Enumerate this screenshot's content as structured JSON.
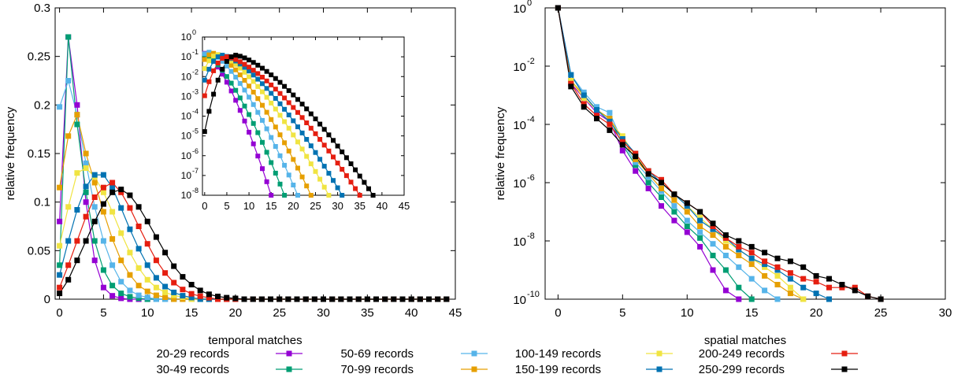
{
  "colors": {
    "20-29 records": "#9400d3",
    "30-49 records": "#009e73",
    "50-69 records": "#56b4e9",
    "70-99 records": "#e69f00",
    "100-149 records": "#f0e442",
    "150-199 records": "#0072b2",
    "200-249 records": "#e51e10",
    "250-299 records": "#000000"
  },
  "legend": {
    "placement": "bottom",
    "entries": [
      "20-29 records",
      "30-49 records",
      "50-69 records",
      "70-99 records",
      "100-149 records",
      "150-199 records",
      "200-249 records",
      "250-299 records"
    ]
  },
  "chart_data": [
    {
      "id": "left",
      "type": "line",
      "xlabel": "temporal matches",
      "ylabel": "relative frequency",
      "xlim": [
        -0.5,
        45
      ],
      "ylim": [
        0,
        0.3
      ],
      "xticks": [
        0,
        5,
        10,
        15,
        20,
        25,
        30,
        35,
        40,
        45
      ],
      "yticks": [
        0,
        0.05,
        0.1,
        0.15,
        0.2,
        0.25,
        0.3
      ],
      "ytick_labels": [
        "0",
        "0.05",
        "0.1",
        "0.15",
        "0.2",
        "0.25",
        "0.3"
      ],
      "x_max_series": 44,
      "series": [
        {
          "name": "20-29 records",
          "values": [
            0.08,
            0.27,
            0.2,
            0.1,
            0.04,
            0.012,
            0.0035,
            0.0009
          ]
        },
        {
          "name": "30-49 records",
          "values": [
            0.035,
            0.27,
            0.18,
            0.11,
            0.06,
            0.03,
            0.014,
            0.006,
            0.0025,
            0.001
          ]
        },
        {
          "name": "50-69 records",
          "values": [
            0.198,
            0.225,
            0.19,
            0.14,
            0.095,
            0.06,
            0.035,
            0.018,
            0.009,
            0.004,
            0.0018
          ]
        },
        {
          "name": "70-99 records",
          "values": [
            0.115,
            0.168,
            0.19,
            0.15,
            0.12,
            0.09,
            0.062,
            0.04,
            0.025,
            0.014,
            0.008,
            0.004,
            0.002
          ]
        },
        {
          "name": "100-149 records",
          "values": [
            0.055,
            0.095,
            0.13,
            0.135,
            0.126,
            0.11,
            0.09,
            0.068,
            0.048,
            0.032,
            0.02,
            0.012,
            0.007,
            0.004,
            0.002
          ]
        },
        {
          "name": "150-199 records",
          "values": [
            0.025,
            0.06,
            0.092,
            0.116,
            0.128,
            0.128,
            0.115,
            0.094,
            0.072,
            0.052,
            0.035,
            0.022,
            0.013,
            0.007,
            0.0036,
            0.0017
          ]
        },
        {
          "name": "200-249 records",
          "values": [
            0.012,
            0.035,
            0.06,
            0.085,
            0.105,
            0.115,
            0.12,
            0.11,
            0.094,
            0.075,
            0.057,
            0.04,
            0.027,
            0.017,
            0.01,
            0.0055,
            0.003,
            0.0015
          ]
        },
        {
          "name": "250-299 records",
          "values": [
            0.006,
            0.02,
            0.04,
            0.06,
            0.08,
            0.098,
            0.11,
            0.113,
            0.107,
            0.095,
            0.08,
            0.064,
            0.048,
            0.034,
            0.023,
            0.015,
            0.009,
            0.005,
            0.0028,
            0.0015,
            0.0008
          ]
        }
      ]
    },
    {
      "id": "inset",
      "type": "line",
      "yscale": "log",
      "xlim": [
        -0.5,
        45
      ],
      "ylim_exp": [
        -8,
        0
      ],
      "xticks": [
        0,
        5,
        10,
        15,
        20,
        25,
        30,
        35,
        40,
        45
      ],
      "yticks_exp": [
        0,
        -1,
        -2,
        -3,
        -4,
        -5,
        -6,
        -7,
        -8
      ],
      "series": [
        {
          "name": "20-29 records",
          "x0": 0,
          "b": 0.15,
          "x1": 15,
          "p": 0.2
        },
        {
          "name": "30-49 records",
          "x0": 0,
          "b": 0.13,
          "x1": 18,
          "p": 0.2
        },
        {
          "name": "50-69 records",
          "x0": 1,
          "b": 0.17,
          "x1": 21,
          "p": 0.2
        },
        {
          "name": "70-99 records",
          "x0": 2,
          "b": 0.15,
          "x1": 24,
          "p": 0.2
        },
        {
          "name": "100-149 records",
          "x0": 3,
          "b": 0.13,
          "x1": 28,
          "p": 0.2
        },
        {
          "name": "150-199 records",
          "x0": 4,
          "b": 0.12,
          "x1": 31,
          "p": 0.2
        },
        {
          "name": "200-249 records",
          "x0": 5,
          "b": 0.1,
          "x1": 35,
          "p": 0.2
        },
        {
          "name": "250-299 records",
          "x0": 7,
          "b": 0.12,
          "x1": 38,
          "p": 0.2
        }
      ]
    },
    {
      "id": "right",
      "type": "line",
      "yscale": "log",
      "xlabel": "spatial matches",
      "ylabel": "relative frequency",
      "xlim": [
        -1,
        30
      ],
      "ylim_exp": [
        -10,
        0
      ],
      "xticks": [
        0,
        5,
        10,
        15,
        20,
        25,
        30
      ],
      "yticks_exp": [
        0,
        -2,
        -4,
        -6,
        -8,
        -10
      ],
      "series": [
        {
          "name": "20-29 records",
          "log10": [
            0,
            -2.6,
            -3.1,
            -3.6,
            -3.9,
            -4.9,
            -5.6,
            -6.2,
            -6.8,
            -7.3,
            -7.7,
            -8.2,
            -9.0,
            -9.7,
            -10.0
          ]
        },
        {
          "name": "30-49 records",
          "log10": [
            0,
            -2.5,
            -3.0,
            -3.5,
            -3.8,
            -4.7,
            -5.4,
            -6.0,
            -6.5,
            -7.0,
            -7.5,
            -7.9,
            -8.5,
            -9.0,
            -9.6,
            -10.0
          ]
        },
        {
          "name": "50-69 records",
          "log10": [
            0,
            -2.3,
            -2.9,
            -3.4,
            -3.6,
            -4.6,
            -5.3,
            -5.8,
            -6.3,
            -6.8,
            -7.3,
            -7.7,
            -8.1,
            -8.5,
            -8.9,
            -9.3,
            -9.7,
            -10.0
          ]
        },
        {
          "name": "70-99 records",
          "log10": [
            0,
            -2.5,
            -3.0,
            -3.5,
            -3.8,
            -4.5,
            -5.2,
            -5.7,
            -6.2,
            -6.6,
            -7.0,
            -7.5,
            -7.8,
            -8.2,
            -8.5,
            -8.8,
            -9.2,
            -9.5,
            -9.8,
            -10.0
          ]
        },
        {
          "name": "100-149 records",
          "log10": [
            0,
            -2.5,
            -3.1,
            -3.5,
            -3.9,
            -4.4,
            -5.1,
            -5.6,
            -6.0,
            -6.4,
            -6.8,
            -7.2,
            -7.6,
            -8.0,
            -8.3,
            -8.6,
            -8.9,
            -9.2,
            -9.6,
            -10.0
          ]
        },
        {
          "name": "150-199 records",
          "log10": [
            0,
            -2.3,
            -3.0,
            -3.5,
            -3.9,
            -4.5,
            -5.0,
            -5.6,
            -6.0,
            -6.4,
            -6.8,
            -7.3,
            -7.6,
            -7.9,
            -8.3,
            -8.6,
            -8.8,
            -9.0,
            -9.3,
            -9.6,
            -9.8,
            -10.0
          ]
        },
        {
          "name": "200-249 records",
          "log10": [
            0,
            -2.6,
            -3.3,
            -3.7,
            -4.0,
            -4.6,
            -5.0,
            -5.6,
            -5.9,
            -6.4,
            -6.7,
            -7.0,
            -7.5,
            -7.9,
            -8.2,
            -8.4,
            -8.7,
            -8.9,
            -9.1,
            -9.3,
            -9.4,
            -9.6,
            -9.6,
            -9.6,
            -9.9,
            -10.0
          ]
        },
        {
          "name": "250-299 records",
          "log10": [
            0,
            -2.7,
            -3.4,
            -3.8,
            -4.2,
            -4.7,
            -5.1,
            -5.7,
            -6.0,
            -6.4,
            -6.7,
            -7.0,
            -7.4,
            -7.8,
            -8.0,
            -8.2,
            -8.4,
            -8.6,
            -8.7,
            -8.9,
            -9.2,
            -9.3,
            -9.5,
            -9.7,
            -9.9,
            -10.0
          ]
        }
      ]
    }
  ]
}
